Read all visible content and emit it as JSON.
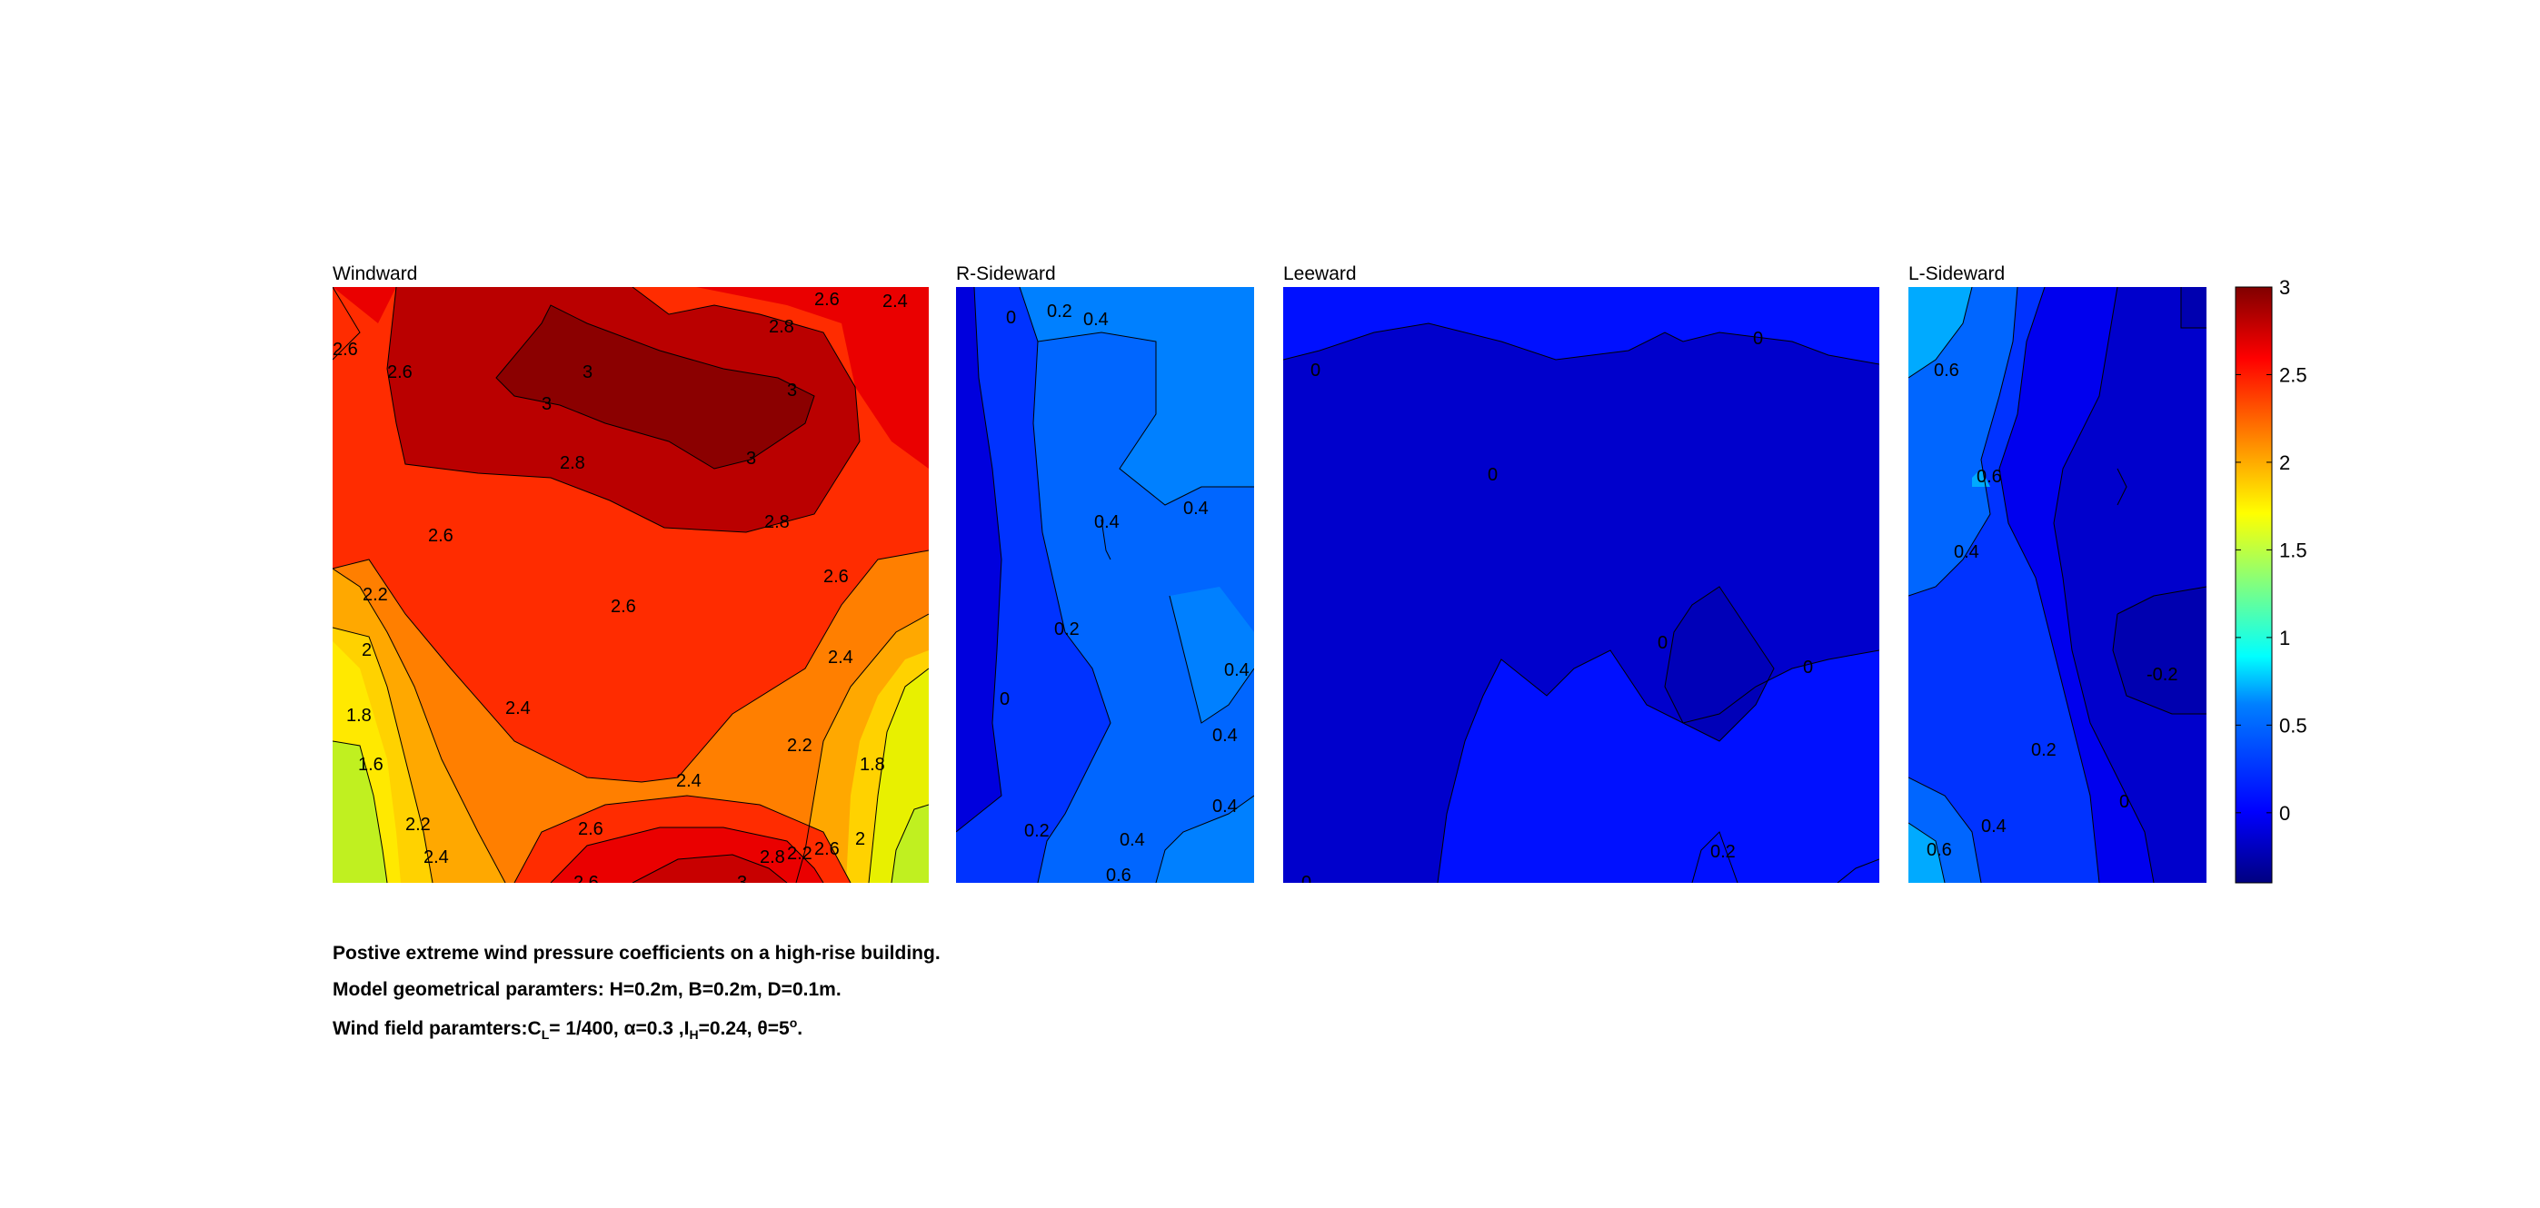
{
  "chart_data": [
    {
      "type": "contour",
      "title": "Windward",
      "levels": [
        1.6,
        1.8,
        2,
        2.2,
        2.4,
        2.6,
        2.8,
        3
      ],
      "contour_labels": [
        "2.6",
        "2.4",
        "2.6",
        "2.8",
        "2.6",
        "3",
        "3",
        "3",
        "3",
        "2.8",
        "2.6",
        "2.8",
        "2.2",
        "2.6",
        "2.6",
        "2",
        "2.4",
        "1.8",
        "2.4",
        "1.6",
        "2.2",
        "2.4",
        "1.8",
        "2.2",
        "2.6",
        "2.4",
        "2.2",
        "2",
        "2.8",
        "2.6",
        "2.6",
        "3"
      ]
    },
    {
      "type": "contour",
      "title": "R-Sideward",
      "levels": [
        0,
        0.2,
        0.4,
        0.6
      ],
      "contour_labels": [
        "0",
        "0.2",
        "0.4",
        "0.4",
        "0.4",
        "0.2",
        "0",
        "0.4",
        "0.4",
        "0.4",
        "0.2",
        "0.4",
        "0.6"
      ]
    },
    {
      "type": "contour",
      "title": "Leeward",
      "levels": [
        0,
        0.2
      ],
      "contour_labels": [
        "0",
        "0",
        "0",
        "0",
        "0",
        "0.2",
        "0"
      ]
    },
    {
      "type": "contour",
      "title": "L-Sideward",
      "levels": [
        -0.2,
        0,
        0.2,
        0.4,
        0.6
      ],
      "contour_labels": [
        "0.6",
        "0.6",
        "0.4",
        "-0.2",
        "0.2",
        "0",
        "0.4",
        "0.6"
      ]
    }
  ],
  "colorbar": {
    "ticks": [
      "3",
      "2.5",
      "2",
      "1.5",
      "1",
      "0.5",
      "0"
    ],
    "range": [
      -0.4,
      3
    ],
    "colormap": "jet"
  },
  "caption": {
    "line1": "Postive extreme  wind pressure coefficients on a high-rise building.",
    "line2": "Model geometrical paramters: H=0.2m, B=0.2m, D=0.1m.",
    "line3_prefix": "Wind field paramters:C",
    "line3_sub1": "L",
    "line3_mid1": "= 1/400, α=0.3 ,I",
    "line3_sub2": "H",
    "line3_mid2": "=0.24, θ=5",
    "line3_sup": "o",
    "line3_end": "."
  }
}
